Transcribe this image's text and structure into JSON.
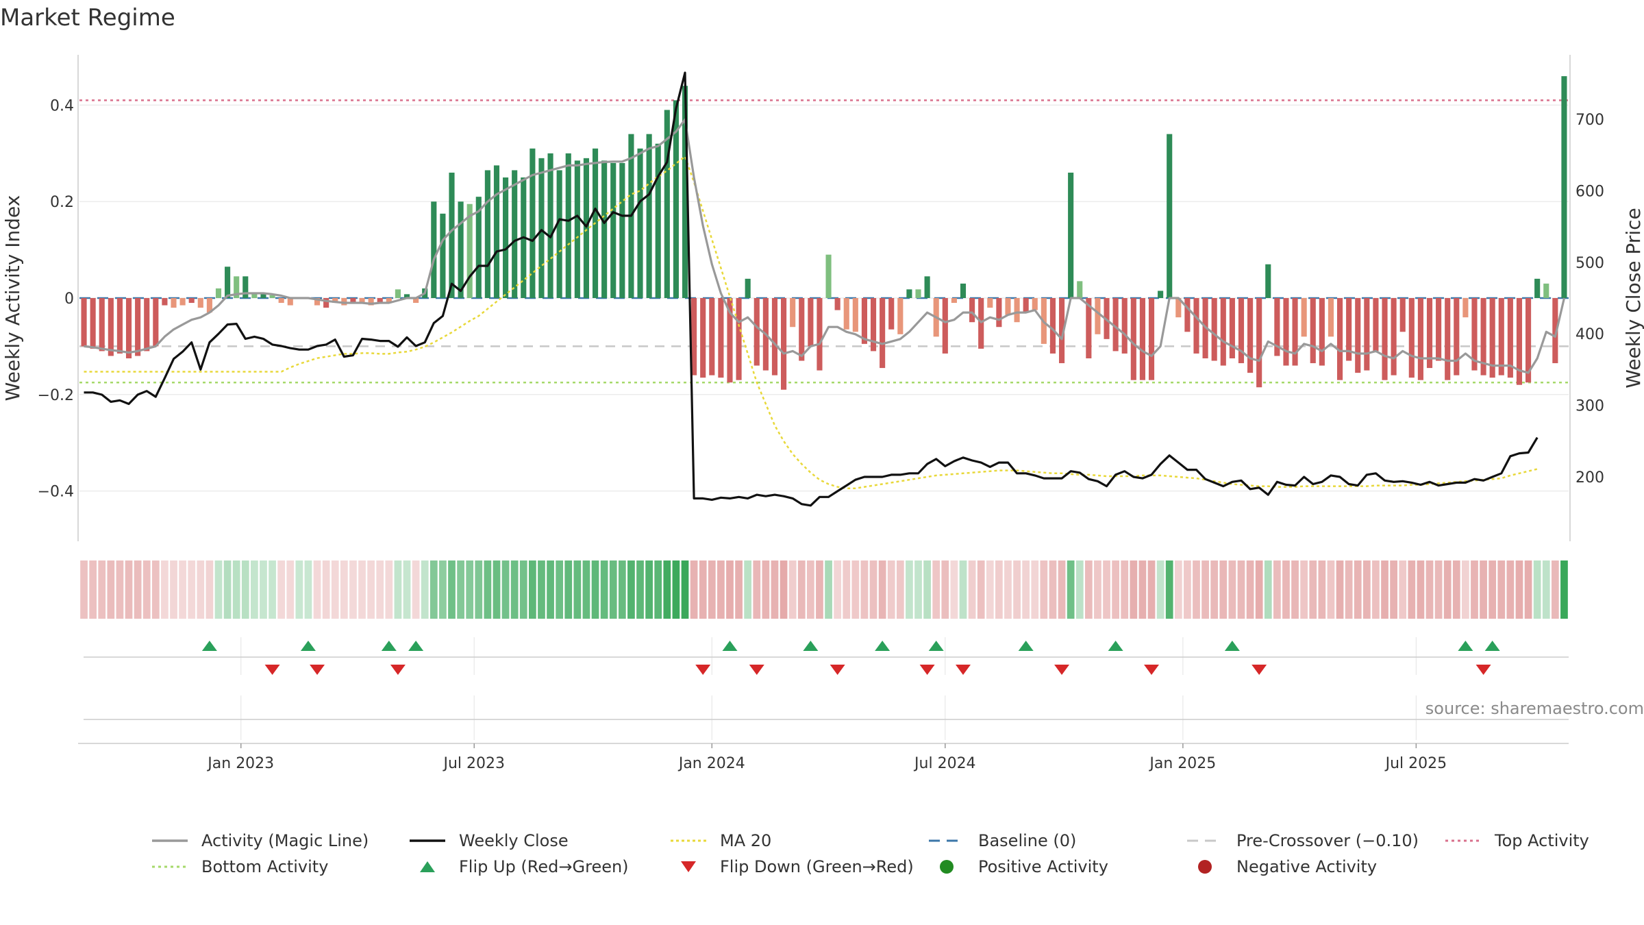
{
  "title": "Market Regime",
  "source": "source: sharemaestro.com",
  "colors": {
    "strong_up": "#2e8b57",
    "light_up": "#7fbf7f",
    "strong_down": "#cd5c5c",
    "light_down": "#e8967a",
    "magic_line": "#999999",
    "weekly_close": "#111111",
    "ma20": "#e8d83a",
    "baseline": "#3b76a8",
    "pre_crossover": "#c8c8c8",
    "top_activity": "#d9708c",
    "bottom_activity": "#a6d96a",
    "flip_up": "#2aa05a",
    "flip_down": "#d62728",
    "positive_dot": "#228b22",
    "negative_dot": "#b22222"
  },
  "chart_data": {
    "type": "bar",
    "title": "Market Regime",
    "y_left_label": "Weekly Activity Index",
    "y_right_label": "Weekly Close Price",
    "y_left_ticks": [
      {
        "value": 0.4,
        "label": "0.4"
      },
      {
        "value": 0.2,
        "label": "0.2"
      },
      {
        "value": 0,
        "label": "0"
      },
      {
        "value": -0.2,
        "label": "−0.2"
      },
      {
        "value": -0.4,
        "label": "−0.4"
      }
    ],
    "y_right_ticks": [
      {
        "value": 700,
        "label": "700"
      },
      {
        "value": 600,
        "label": "600"
      },
      {
        "value": 500,
        "label": "500"
      },
      {
        "value": 400,
        "label": "400"
      },
      {
        "value": 300,
        "label": "300"
      },
      {
        "value": 200,
        "label": "200"
      }
    ],
    "x_ticks": [
      {
        "week": 17.5,
        "label": "Jan 2023"
      },
      {
        "week": 43.5,
        "label": "Jul 2023"
      },
      {
        "week": 70,
        "label": "Jan 2024"
      },
      {
        "week": 96,
        "label": "Jul 2024"
      },
      {
        "week": 122.5,
        "label": "Jan 2025"
      },
      {
        "week": 148.5,
        "label": "Jul 2025"
      }
    ],
    "ylim_left": [
      -0.5,
      0.5
    ],
    "ylim_right": [
      110,
      790
    ],
    "reference_lines": {
      "baseline": 0,
      "pre_crossover": -0.1,
      "top_activity": 0.41,
      "bottom_activity": -0.175
    },
    "activity": [
      -0.1,
      -0.105,
      -0.11,
      -0.12,
      -0.115,
      -0.125,
      -0.12,
      -0.11,
      -0.1,
      -0.015,
      -0.02,
      -0.015,
      -0.01,
      -0.02,
      -0.03,
      0.02,
      0.065,
      0.045,
      0.045,
      0.01,
      0.008,
      0.006,
      -0.01,
      -0.015,
      0,
      0,
      -0.015,
      -0.02,
      -0.01,
      -0.015,
      -0.008,
      -0.01,
      -0.015,
      -0.01,
      -0.01,
      0.018,
      0.008,
      -0.01,
      0.02,
      0.2,
      0.175,
      0.26,
      0.2,
      0.195,
      0.21,
      0.265,
      0.275,
      0.25,
      0.265,
      0.25,
      0.31,
      0.29,
      0.3,
      0.265,
      0.3,
      0.285,
      0.29,
      0.31,
      0.285,
      0.28,
      0.28,
      0.34,
      0.31,
      0.34,
      0.32,
      0.39,
      0.41,
      0.44,
      -0.16,
      -0.165,
      -0.16,
      -0.165,
      -0.175,
      -0.17,
      0.04,
      -0.14,
      -0.15,
      -0.16,
      -0.19,
      -0.06,
      -0.13,
      -0.1,
      -0.15,
      0.09,
      -0.025,
      -0.065,
      -0.07,
      -0.095,
      -0.11,
      -0.145,
      -0.065,
      -0.075,
      0.018,
      0.018,
      0.045,
      -0.08,
      -0.115,
      -0.01,
      0.03,
      -0.05,
      -0.105,
      -0.02,
      -0.06,
      -0.035,
      -0.05,
      -0.03,
      -0.025,
      -0.095,
      -0.115,
      -0.135,
      0.26,
      0.035,
      -0.125,
      -0.075,
      -0.085,
      -0.11,
      -0.115,
      -0.17,
      -0.17,
      -0.17,
      0.015,
      0.34,
      -0.04,
      -0.07,
      -0.115,
      -0.125,
      -0.13,
      -0.14,
      -0.125,
      -0.135,
      -0.155,
      -0.185,
      0.07,
      -0.12,
      -0.14,
      -0.14,
      -0.08,
      -0.135,
      -0.14,
      -0.08,
      -0.17,
      -0.13,
      -0.155,
      -0.15,
      -0.11,
      -0.17,
      -0.16,
      -0.07,
      -0.165,
      -0.17,
      -0.145,
      -0.13,
      -0.17,
      -0.16,
      -0.04,
      -0.15,
      -0.16,
      -0.165,
      -0.16,
      -0.165,
      -0.18,
      -0.175,
      0.04,
      0.03,
      -0.135,
      0.46
    ],
    "magic_line": [
      -0.1,
      -0.102,
      -0.105,
      -0.108,
      -0.11,
      -0.113,
      -0.11,
      -0.105,
      -0.1,
      -0.08,
      -0.065,
      -0.055,
      -0.045,
      -0.04,
      -0.03,
      -0.015,
      0.005,
      0.008,
      0.01,
      0.01,
      0.01,
      0.008,
      0.005,
      0,
      0,
      0,
      -0.003,
      -0.006,
      -0.008,
      -0.01,
      -0.01,
      -0.01,
      -0.012,
      -0.01,
      -0.01,
      -0.005,
      0,
      0,
      0.01,
      0.08,
      0.12,
      0.14,
      0.155,
      0.17,
      0.18,
      0.2,
      0.215,
      0.225,
      0.235,
      0.245,
      0.255,
      0.26,
      0.265,
      0.27,
      0.275,
      0.275,
      0.278,
      0.28,
      0.282,
      0.283,
      0.283,
      0.29,
      0.3,
      0.31,
      0.315,
      0.33,
      0.345,
      0.37,
      0.25,
      0.15,
      0.07,
      0.01,
      -0.03,
      -0.05,
      -0.04,
      -0.06,
      -0.075,
      -0.095,
      -0.115,
      -0.11,
      -0.12,
      -0.1,
      -0.095,
      -0.06,
      -0.06,
      -0.07,
      -0.075,
      -0.085,
      -0.09,
      -0.095,
      -0.09,
      -0.085,
      -0.07,
      -0.05,
      -0.03,
      -0.04,
      -0.05,
      -0.045,
      -0.03,
      -0.03,
      -0.05,
      -0.04,
      -0.045,
      -0.035,
      -0.03,
      -0.03,
      -0.025,
      -0.05,
      -0.065,
      -0.085,
      0,
      0,
      -0.015,
      -0.03,
      -0.045,
      -0.06,
      -0.075,
      -0.095,
      -0.11,
      -0.12,
      -0.1,
      0,
      0,
      -0.02,
      -0.04,
      -0.06,
      -0.075,
      -0.09,
      -0.1,
      -0.11,
      -0.125,
      -0.13,
      -0.09,
      -0.1,
      -0.11,
      -0.115,
      -0.095,
      -0.1,
      -0.11,
      -0.095,
      -0.11,
      -0.11,
      -0.115,
      -0.115,
      -0.11,
      -0.12,
      -0.125,
      -0.11,
      -0.12,
      -0.125,
      -0.125,
      -0.125,
      -0.13,
      -0.13,
      -0.115,
      -0.13,
      -0.135,
      -0.14,
      -0.14,
      -0.14,
      -0.15,
      -0.155,
      -0.125,
      -0.07,
      -0.08,
      0
    ],
    "weekly_close": [
      318,
      318,
      315,
      305,
      307,
      302,
      315,
      320,
      312,
      338,
      365,
      375,
      388,
      350,
      388,
      400,
      413,
      414,
      393,
      396,
      393,
      385,
      383,
      380,
      378,
      378,
      383,
      385,
      392,
      368,
      370,
      393,
      392,
      390,
      390,
      382,
      395,
      383,
      388,
      415,
      425,
      470,
      460,
      480,
      495,
      495,
      515,
      518,
      530,
      535,
      530,
      545,
      535,
      560,
      558,
      565,
      550,
      575,
      555,
      570,
      565,
      565,
      585,
      595,
      620,
      640,
      715,
      765,
      170,
      170,
      168,
      171,
      170,
      172,
      170,
      175,
      173,
      175,
      173,
      170,
      162,
      160,
      172,
      172,
      180,
      188,
      196,
      200,
      200,
      200,
      203,
      203,
      205,
      205,
      218,
      225,
      215,
      222,
      227,
      223,
      220,
      214,
      220,
      220,
      205,
      205,
      202,
      198,
      198,
      198,
      208,
      206,
      197,
      194,
      187,
      203,
      208,
      200,
      198,
      203,
      218,
      230,
      220,
      210,
      210,
      197,
      192,
      187,
      193,
      195,
      183,
      185,
      175,
      193,
      189,
      188,
      200,
      190,
      193,
      202,
      200,
      190,
      188,
      203,
      205,
      195,
      193,
      194,
      192,
      189,
      193,
      188,
      190,
      192,
      192,
      197,
      195,
      200,
      205,
      229,
      233,
      234,
      255
    ],
    "ma20": [
      347,
      347,
      347,
      347,
      347,
      347,
      347,
      347,
      347,
      347,
      347,
      347,
      347,
      347,
      347,
      347,
      347,
      347,
      347,
      347,
      347,
      347,
      347,
      353,
      358,
      362,
      366,
      368,
      370,
      372,
      372,
      373,
      373,
      372,
      372,
      374,
      375,
      378,
      382,
      388,
      395,
      402,
      410,
      418,
      425,
      435,
      445,
      455,
      465,
      475,
      485,
      495,
      505,
      515,
      525,
      535,
      545,
      555,
      565,
      575,
      585,
      595,
      600,
      610,
      620,
      628,
      638,
      648,
      612,
      572,
      532,
      492,
      452,
      412,
      372,
      332,
      302,
      272,
      250,
      232,
      218,
      206,
      196,
      190,
      186,
      184,
      184,
      186,
      188,
      190,
      192,
      194,
      196,
      198,
      200,
      202,
      203,
      204,
      205,
      206,
      207,
      208,
      209,
      209,
      209,
      208,
      207,
      206,
      205,
      205,
      204,
      203,
      203,
      202,
      201,
      201,
      201,
      201,
      202,
      202,
      202,
      201,
      200,
      199,
      198,
      196,
      194,
      192,
      190,
      189,
      188,
      187,
      187,
      186,
      186,
      186,
      187,
      187,
      187,
      187,
      187,
      187,
      187,
      187,
      188,
      188,
      188,
      188,
      189,
      189,
      190,
      191,
      192,
      193,
      194,
      195,
      196,
      197,
      198,
      202,
      205,
      208,
      211
    ],
    "flip_up_weeks": [
      14,
      25,
      34,
      37,
      72,
      81,
      89,
      95,
      105,
      115,
      128,
      154,
      157
    ],
    "flip_down_weeks": [
      21,
      26,
      35,
      69,
      75,
      84,
      94,
      98,
      109,
      119,
      131,
      156
    ]
  },
  "legend": {
    "row1": [
      {
        "key": "magic",
        "label": "Activity (Magic Line)"
      },
      {
        "key": "close",
        "label": "Weekly Close"
      },
      {
        "key": "ma20",
        "label": "MA 20"
      },
      {
        "key": "baseline",
        "label": "Baseline (0)"
      },
      {
        "key": "precross",
        "label": "Pre-Crossover (−0.10)"
      },
      {
        "key": "top",
        "label": "Top Activity"
      }
    ],
    "row2": [
      {
        "key": "bottom",
        "label": "Bottom Activity"
      },
      {
        "key": "flipup",
        "label": "Flip Up (Red→Green)"
      },
      {
        "key": "flipdown",
        "label": "Flip Down (Green→Red)"
      },
      {
        "key": "posdot",
        "label": "Positive Activity"
      },
      {
        "key": "negdot",
        "label": "Negative Activity"
      }
    ]
  }
}
